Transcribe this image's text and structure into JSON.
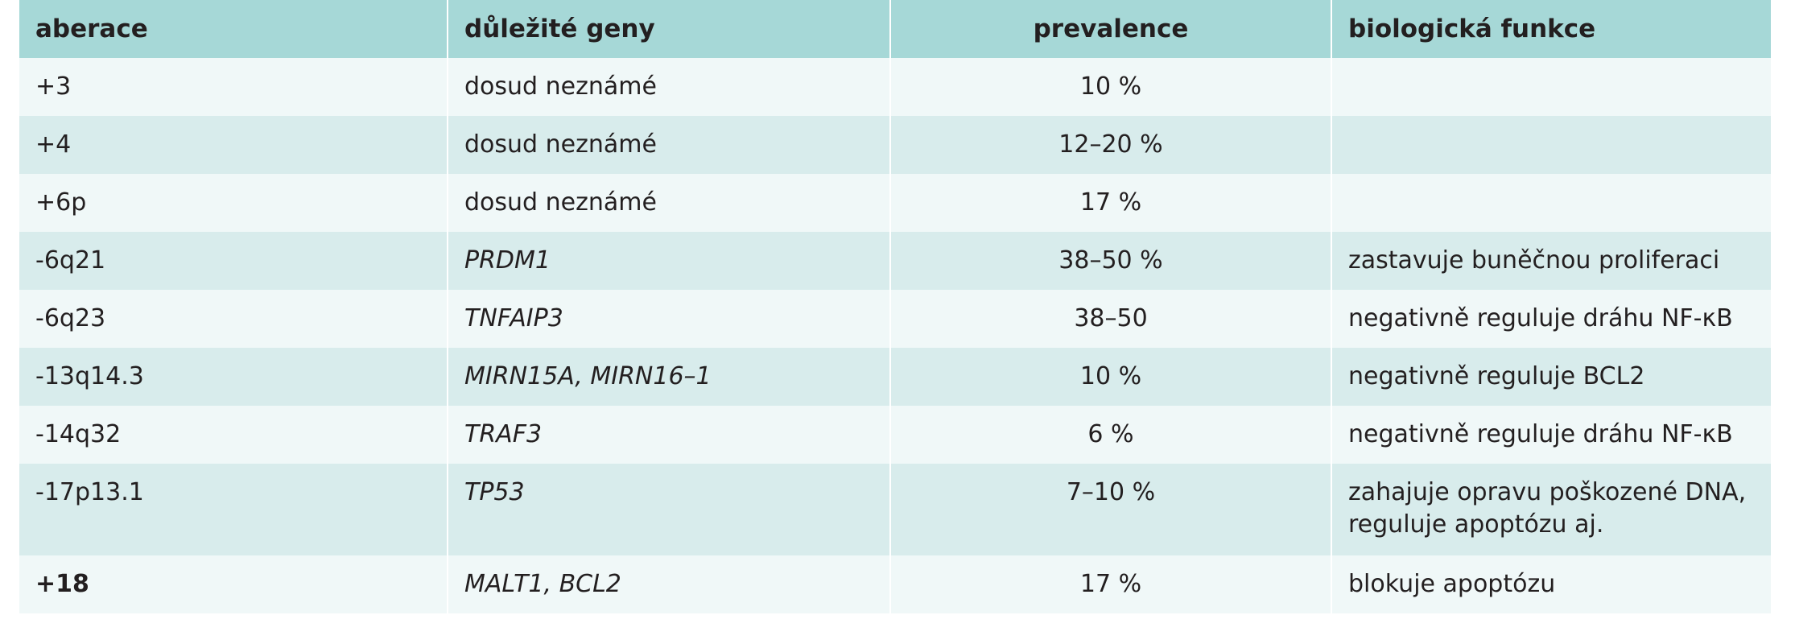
{
  "table": {
    "headers": [
      "aberace",
      "důležité geny",
      "prevalence",
      "biologická funkce"
    ],
    "rows": [
      {
        "aberration": "+3",
        "genes": "dosud neznámé",
        "genes_italic": false,
        "prevalence": "10 %",
        "function": ""
      },
      {
        "aberration": "+4",
        "genes": "dosud neznámé",
        "genes_italic": false,
        "prevalence": "12–20 %",
        "function": ""
      },
      {
        "aberration": "+6p",
        "genes": "dosud neznámé",
        "genes_italic": false,
        "prevalence": "17 %",
        "function": ""
      },
      {
        "aberration": "-6q21",
        "genes": "PRDM1",
        "genes_italic": true,
        "prevalence": "38–50 %",
        "function": "zastavuje buněčnou proliferaci"
      },
      {
        "aberration": "-6q23",
        "genes": "TNFAIP3",
        "genes_italic": true,
        "prevalence": "38–50",
        "function": "negativně reguluje dráhu NF-κB"
      },
      {
        "aberration": "-13q14.3",
        "genes": "MIRN15A, MIRN16–1",
        "genes_italic": true,
        "prevalence": "10 %",
        "function": "negativně reguluje BCL2"
      },
      {
        "aberration": "-14q32",
        "genes": "TRAF3",
        "genes_italic": true,
        "prevalence": "6 %",
        "function": "negativně reguluje dráhu NF-κB"
      },
      {
        "aberration": "-17p13.1",
        "genes": "TP53",
        "genes_italic": true,
        "prevalence": "7–10 %",
        "function": "zahajuje opravu poškozené DNA, reguluje apoptózu aj."
      },
      {
        "aberration": "+18",
        "genes": "MALT1, BCL2",
        "genes_italic": true,
        "prevalence": "17 %",
        "function": "blokuje apoptózu"
      }
    ]
  },
  "colors": {
    "header_bg": "#a6d8d7",
    "row_light": "#f0f8f8",
    "row_dark": "#d8ecec",
    "text": "#231f20"
  }
}
